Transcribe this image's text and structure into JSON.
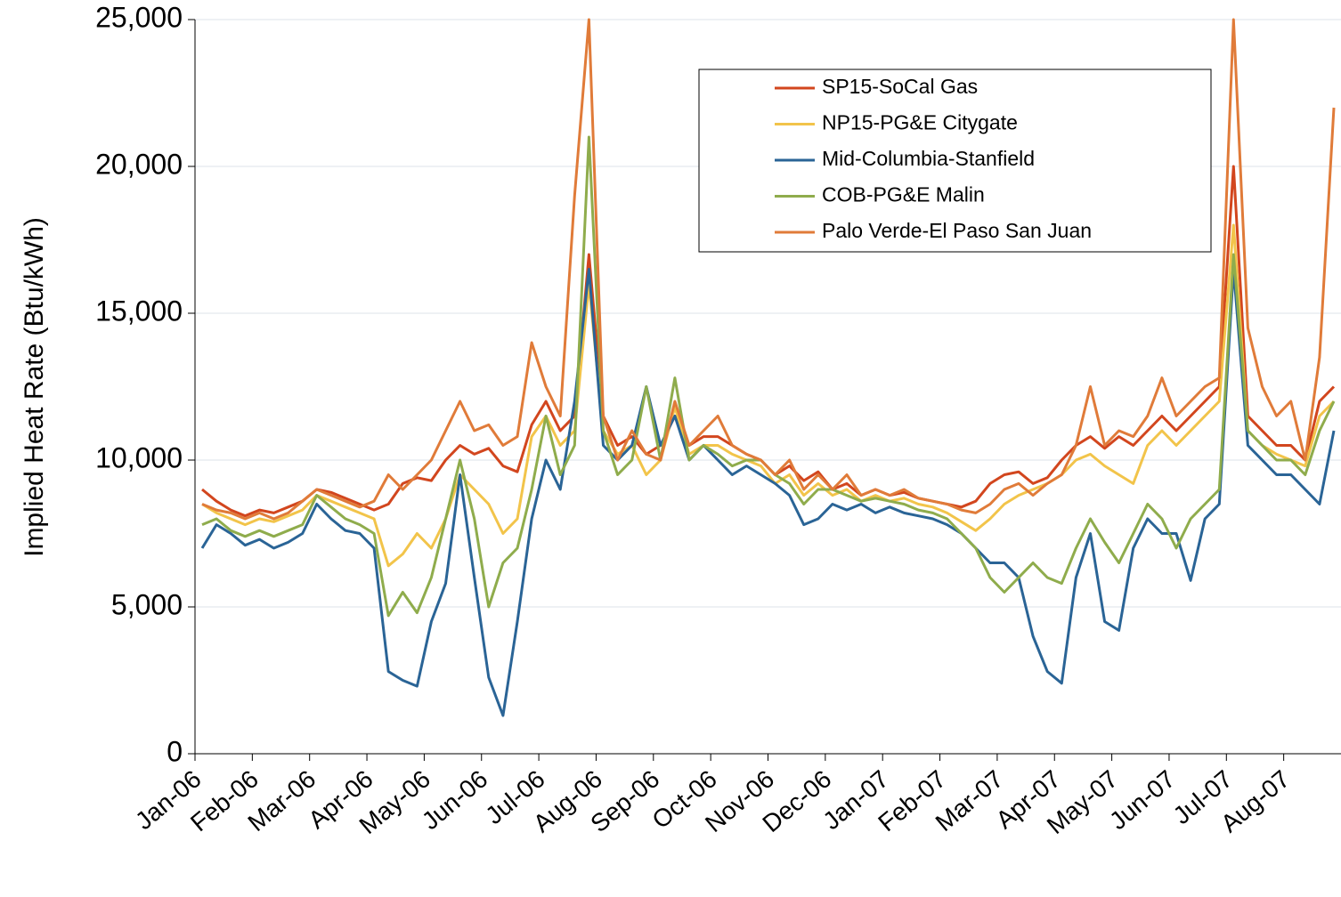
{
  "chart_data": {
    "type": "line",
    "y_label": "Implied Heat Rate (Btu/kWh)",
    "categories": [
      "Jan-06",
      null,
      null,
      null,
      "Feb-06",
      null,
      null,
      null,
      "Mar-06",
      null,
      null,
      null,
      "Apr-06",
      null,
      null,
      null,
      "May-06",
      null,
      null,
      null,
      "Jun-06",
      null,
      null,
      null,
      "Jul-06",
      null,
      null,
      null,
      "Aug-06",
      null,
      null,
      null,
      "Sep-06",
      null,
      null,
      null,
      "Oct-06",
      null,
      null,
      null,
      "Nov-06",
      null,
      null,
      null,
      "Dec-06",
      null,
      null,
      null,
      "Jan-07",
      null,
      null,
      null,
      "Feb-07",
      null,
      null,
      null,
      "Mar-07",
      null,
      null,
      null,
      "Apr-07",
      null,
      null,
      null,
      "May-07",
      null,
      null,
      null,
      "Jun-07",
      null,
      null,
      null,
      "Jul-07",
      null,
      null,
      null,
      "Aug-07",
      null,
      null,
      null
    ],
    "series": [
      {
        "name": "SP15-SoCal Gas",
        "color": "#d2461e",
        "values": [
          9000,
          8600,
          8300,
          8100,
          8300,
          8200,
          8400,
          8600,
          9000,
          8900,
          8700,
          8500,
          8300,
          8500,
          9200,
          9400,
          9300,
          10000,
          10500,
          10200,
          10400,
          9800,
          9600,
          11200,
          12000,
          11000,
          11500,
          17000,
          11500,
          10500,
          10800,
          10200,
          10500,
          11500,
          10500,
          10800,
          10800,
          10500,
          10200,
          10000,
          9500,
          9800,
          9300,
          9600,
          9000,
          9200,
          8800,
          9000,
          8800,
          8900,
          8700,
          8600,
          8500,
          8400,
          8600,
          9200,
          9500,
          9600,
          9200,
          9400,
          10000,
          10500,
          10800,
          10400,
          10800,
          10500,
          11000,
          11500,
          11000,
          11500,
          12000,
          12500,
          20000,
          11500,
          11000,
          10500,
          10500,
          10000,
          12000,
          12500
        ]
      },
      {
        "name": "NP15-PG&E Citygate",
        "color": "#f2c44a",
        "values": [
          8500,
          8200,
          8000,
          7800,
          8000,
          7900,
          8100,
          8300,
          8800,
          8600,
          8400,
          8200,
          8000,
          6400,
          6800,
          7500,
          7000,
          8000,
          9500,
          9000,
          8500,
          7500,
          8000,
          10800,
          11500,
          10500,
          11000,
          16000,
          11000,
          10200,
          10500,
          9500,
          10000,
          11800,
          10200,
          10500,
          10500,
          10200,
          10000,
          9800,
          9200,
          9500,
          8800,
          9200,
          8800,
          9000,
          8600,
          8800,
          8600,
          8700,
          8500,
          8400,
          8200,
          7900,
          7600,
          8000,
          8500,
          8800,
          9000,
          9200,
          9500,
          10000,
          10200,
          9800,
          9500,
          9200,
          10500,
          11000,
          10500,
          11000,
          11500,
          12000,
          18000,
          11000,
          10500,
          10200,
          10000,
          9800,
          11500,
          12000
        ]
      },
      {
        "name": "Mid-Columbia-Stanfield",
        "color": "#2a6496",
        "values": [
          7000,
          7800,
          7500,
          7100,
          7300,
          7000,
          7200,
          7500,
          8500,
          8000,
          7600,
          7500,
          7000,
          2800,
          2500,
          2300,
          4500,
          5800,
          9500,
          6000,
          2600,
          1300,
          4500,
          8000,
          10000,
          9000,
          12000,
          16500,
          10500,
          10000,
          10500,
          12500,
          10500,
          11500,
          10000,
          10500,
          10000,
          9500,
          9800,
          9500,
          9200,
          8800,
          7800,
          8000,
          8500,
          8300,
          8500,
          8200,
          8400,
          8200,
          8100,
          8000,
          7800,
          7500,
          7000,
          6500,
          6500,
          6000,
          4000,
          2800,
          2400,
          6000,
          7500,
          4500,
          4200,
          7000,
          8000,
          7500,
          7500,
          5900,
          8000,
          8500,
          16500,
          10500,
          10000,
          9500,
          9500,
          9000,
          8500,
          11000
        ]
      },
      {
        "name": "COB-PG&E Malin",
        "color": "#8fac4c",
        "values": [
          7800,
          8000,
          7600,
          7400,
          7600,
          7400,
          7600,
          7800,
          8800,
          8400,
          8000,
          7800,
          7500,
          4700,
          5500,
          4800,
          6000,
          8000,
          10000,
          8000,
          5000,
          6500,
          7000,
          9000,
          11500,
          9500,
          10500,
          21000,
          11000,
          9500,
          10000,
          12500,
          10000,
          12800,
          10000,
          10500,
          10200,
          9800,
          10000,
          10000,
          9500,
          9200,
          8500,
          9000,
          9000,
          8800,
          8600,
          8700,
          8600,
          8500,
          8300,
          8200,
          8000,
          7500,
          7000,
          6000,
          5500,
          6000,
          6500,
          6000,
          5800,
          7000,
          8000,
          7200,
          6500,
          7500,
          8500,
          8000,
          7000,
          8000,
          8500,
          9000,
          17000,
          11000,
          10500,
          10000,
          10000,
          9500,
          11000,
          12000
        ]
      },
      {
        "name": "Palo Verde-El Paso San Juan",
        "color": "#e07b39",
        "values": [
          8500,
          8300,
          8200,
          8000,
          8200,
          8000,
          8200,
          8600,
          9000,
          8800,
          8600,
          8400,
          8600,
          9500,
          9000,
          9500,
          10000,
          11000,
          12000,
          11000,
          11200,
          10500,
          10800,
          14000,
          12500,
          11500,
          19000,
          25000,
          11500,
          10000,
          11000,
          10200,
          10000,
          12000,
          10500,
          11000,
          11500,
          10500,
          10200,
          10000,
          9500,
          10000,
          9000,
          9500,
          9000,
          9500,
          8800,
          9000,
          8800,
          9000,
          8700,
          8600,
          8500,
          8300,
          8200,
          8500,
          9000,
          9200,
          8800,
          9200,
          9500,
          10500,
          12500,
          10500,
          11000,
          10800,
          11500,
          12800,
          11500,
          12000,
          12500,
          12800,
          25000,
          14500,
          12500,
          11500,
          12000,
          10000,
          13500,
          22000
        ]
      }
    ],
    "ylim": [
      0,
      25000
    ],
    "yticks": [
      0,
      {
        "value": 5000,
        "label": "5,000"
      },
      {
        "value": 10000,
        "label": "10,000"
      },
      {
        "value": 15000,
        "label": "15,000"
      },
      {
        "value": 20000,
        "label": "20,000"
      },
      {
        "value": 25000,
        "label": "25,000"
      }
    ],
    "grid": true
  }
}
